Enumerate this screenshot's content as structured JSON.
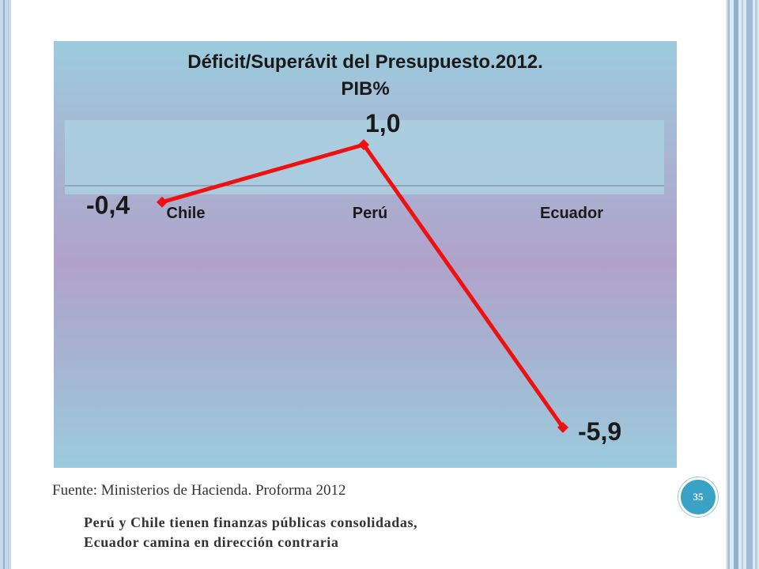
{
  "slide": {
    "source": "Fuente: Ministerios de Hacienda. Proforma 2012",
    "caption_line1": "Perú y Chile tienen finanzas públicas consolidadas,",
    "caption_line2": "Ecuador camina en dirección contraria",
    "page_number": "35"
  },
  "colors": {
    "line": "#ee1111",
    "frame": "#8fb1cf",
    "badge": "#3aa2c4"
  },
  "chart_data": {
    "type": "line",
    "title_line1": "Déficit/Superávit del Presupuesto.2012.",
    "title_line2": "PIB%",
    "categories": [
      "Chile",
      "Perú",
      "Ecuador"
    ],
    "values": [
      -0.4,
      1.0,
      -5.9
    ],
    "data_labels": [
      "-0,4",
      "1,0",
      "-5,9"
    ],
    "xlabel": "",
    "ylabel": "",
    "ylim": [
      -6.5,
      1.6
    ],
    "grid": false,
    "legend": "none",
    "axis_labels_at_zero": true
  }
}
